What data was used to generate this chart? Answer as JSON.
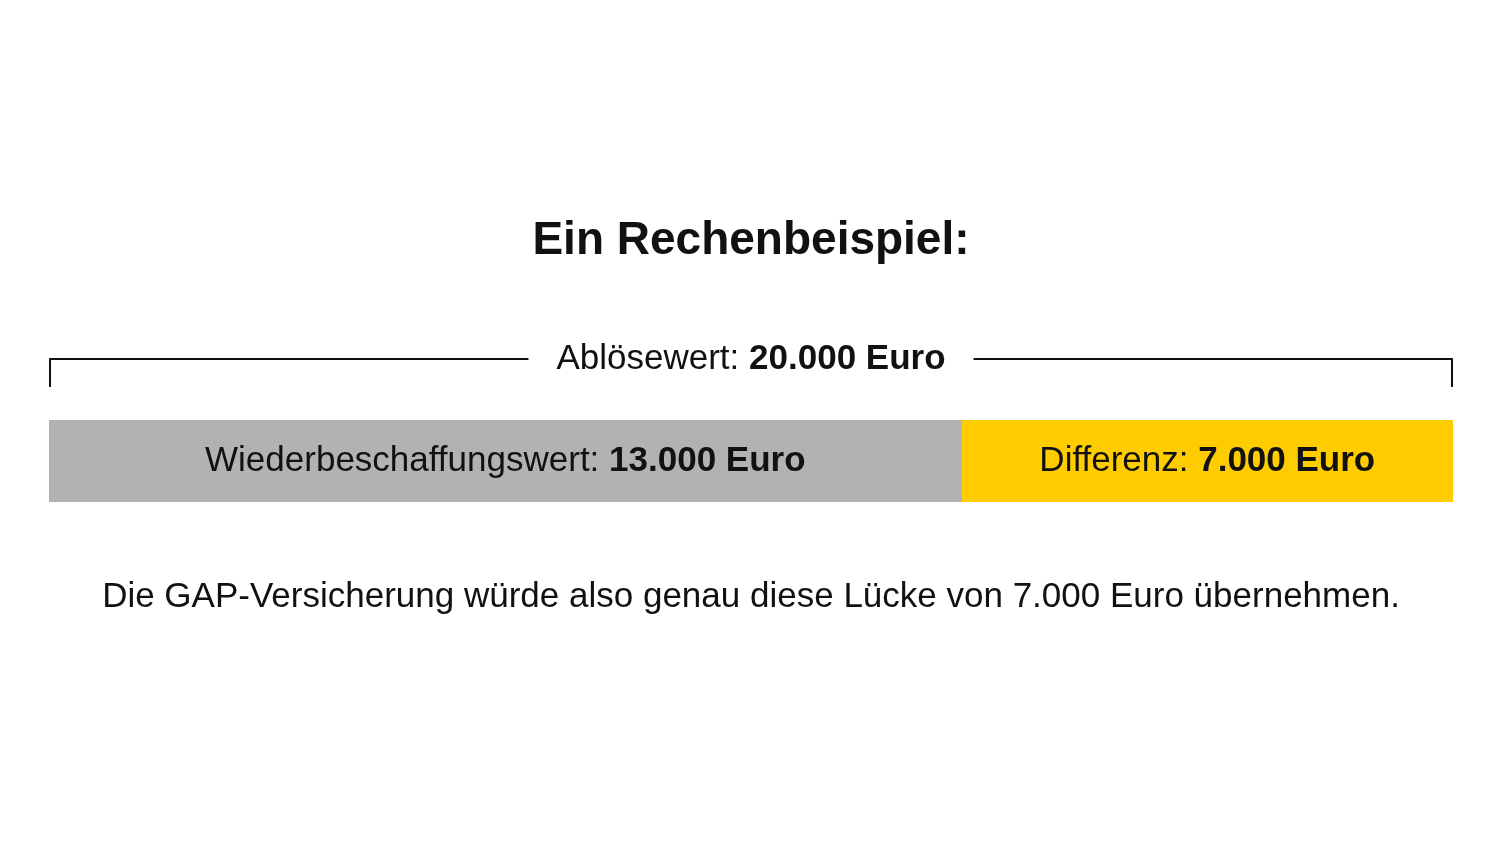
{
  "chart_data": {
    "type": "bar",
    "orientation": "horizontal",
    "stacked": true,
    "title": "Ein Rechenbeispiel:",
    "categories": [
      null
    ],
    "series": [
      {
        "name": "Wiederbeschaffungswert:",
        "color": "#b2b2b2",
        "values": [
          13000
        ],
        "value_labels": [
          "13.000 Euro"
        ]
      },
      {
        "name": "Differenz:",
        "color": "#ffcc00",
        "values": [
          7000
        ],
        "value_labels": [
          "7.000 Euro"
        ]
      }
    ],
    "xlim": [
      0,
      20000
    ],
    "totals": [
      "Ablösewert: 20.000 Euro"
    ],
    "annotations": [
      "Die GAP-Versicherung würde also genau diese Lücke von 7.000 Euro übernehmen."
    ],
    "tick_labels": false,
    "grid": false,
    "legend": false
  }
}
